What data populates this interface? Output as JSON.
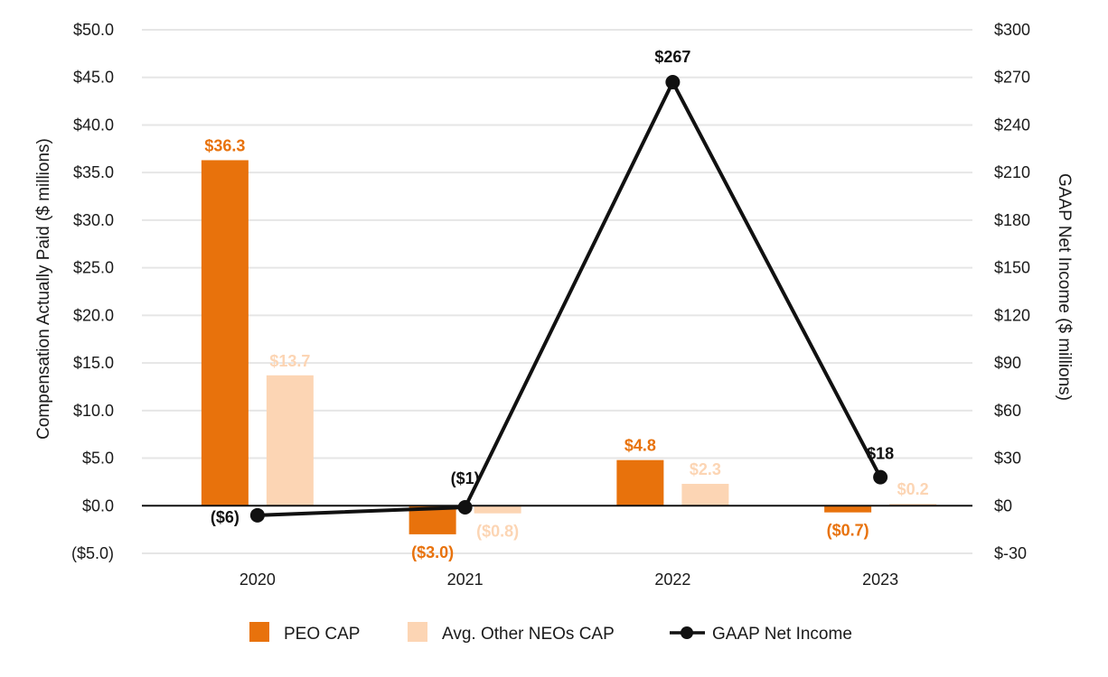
{
  "chart_data": {
    "type": "bar+line",
    "categories": [
      "2020",
      "2021",
      "2022",
      "2023"
    ],
    "series": [
      {
        "name": "PEO CAP",
        "kind": "bar",
        "axis": "left",
        "color": "#E8720C",
        "values": [
          36.3,
          -3.0,
          4.8,
          -0.7
        ],
        "labels": [
          "$36.3",
          "($3.0)",
          "$4.8",
          "($0.7)"
        ]
      },
      {
        "name": "Avg. Other NEOs CAP",
        "kind": "bar",
        "axis": "left",
        "color": "#FCD5B4",
        "values": [
          13.7,
          -0.8,
          2.3,
          0.2
        ],
        "labels": [
          "$13.7",
          "($0.8)",
          "$2.3",
          "$0.2"
        ]
      },
      {
        "name": "GAAP Net Income",
        "kind": "line",
        "axis": "right",
        "color": "#111111",
        "values": [
          -6,
          -1,
          267,
          18
        ],
        "labels": [
          "($6)",
          "($1)",
          "$267",
          "$18"
        ]
      }
    ],
    "left_axis": {
      "title": "Compensation Actually Paid ($ millions)",
      "range": [
        -5,
        50
      ],
      "ticks": [
        -5,
        0,
        5,
        10,
        15,
        20,
        25,
        30,
        35,
        40,
        45,
        50
      ],
      "tick_labels": [
        "($5.0)",
        "$0.0",
        "$5.0",
        "$10.0",
        "$15.0",
        "$20.0",
        "$25.0",
        "$30.0",
        "$35.0",
        "$40.0",
        "$45.0",
        "$50.0"
      ]
    },
    "right_axis": {
      "title": "GAAP Net Income ($ millions)",
      "range": [
        -30,
        300
      ],
      "ticks": [
        -30,
        0,
        30,
        60,
        90,
        120,
        150,
        180,
        210,
        240,
        270,
        300
      ],
      "tick_labels": [
        "$-30",
        "$0",
        "$30",
        "$60",
        "$90",
        "$120",
        "$150",
        "$180",
        "$210",
        "$240",
        "$270",
        "$300"
      ]
    },
    "grid": true,
    "legend_position": "bottom-center",
    "legend": [
      "PEO CAP",
      "Avg. Other NEOs CAP",
      "GAAP Net Income"
    ]
  }
}
